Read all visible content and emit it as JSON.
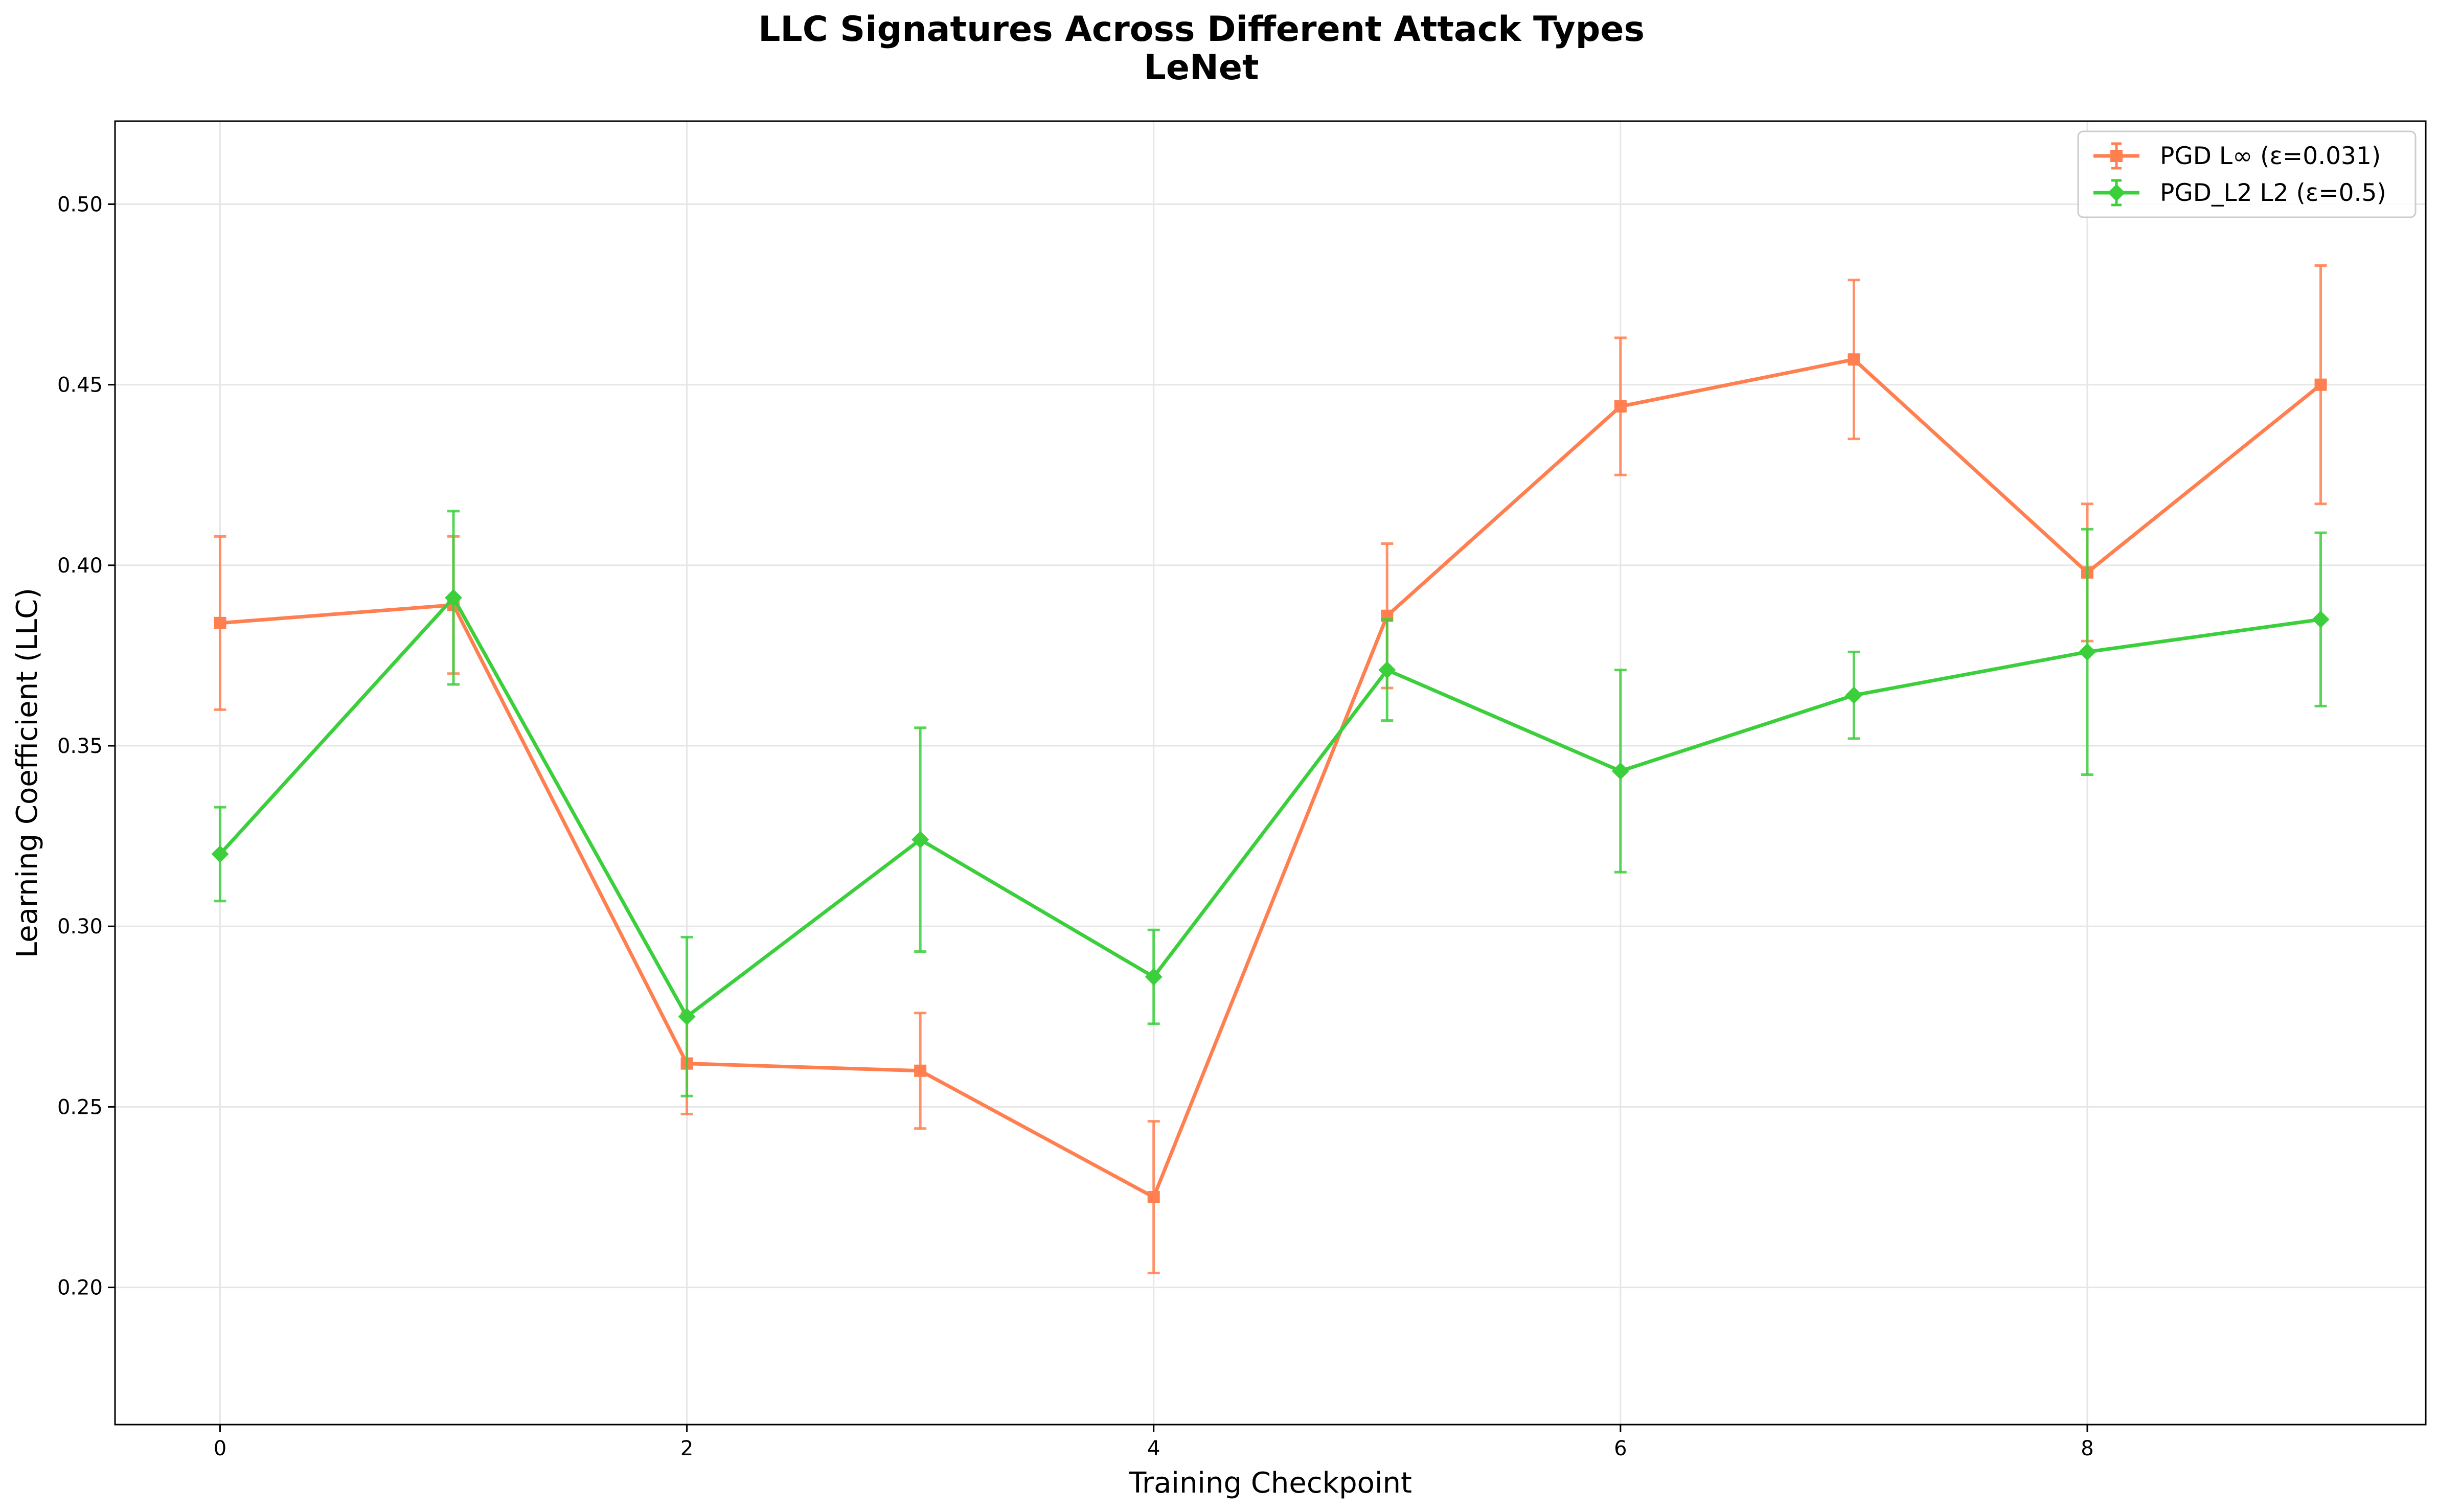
{
  "chart_data": {
    "type": "line",
    "title": "LLC Signatures Across Different Attack Types",
    "subtitle": "LeNet",
    "xlabel": "Training Checkpoint",
    "ylabel": "Learning Coefficient (LLC)",
    "xlim": [
      -0.45,
      9.45
    ],
    "ylim": [
      0.162,
      0.523
    ],
    "xticks": [
      0,
      2,
      4,
      6,
      8
    ],
    "yticks": [
      0.2,
      0.25,
      0.3,
      0.35,
      0.4,
      0.45,
      0.5
    ],
    "xtick_labels": [
      "0",
      "2",
      "4",
      "6",
      "8"
    ],
    "ytick_labels": [
      "0.20",
      "0.25",
      "0.30",
      "0.35",
      "0.40",
      "0.45",
      "0.50"
    ],
    "grid": true,
    "legend_position": "top-right",
    "series": [
      {
        "name": "PGD L∞ (ε=0.031)",
        "color": "#ff7f50",
        "marker": "square",
        "x": [
          0,
          1,
          2,
          3,
          4,
          5,
          6,
          7,
          8,
          9
        ],
        "y": [
          0.384,
          0.389,
          0.262,
          0.26,
          0.225,
          0.386,
          0.444,
          0.457,
          0.398,
          0.45
        ],
        "err": [
          0.024,
          0.019,
          0.014,
          0.016,
          0.021,
          0.02,
          0.019,
          0.022,
          0.019,
          0.033
        ]
      },
      {
        "name": "PGD_L2 L2 (ε=0.5)",
        "color": "#3ccf3c",
        "marker": "diamond",
        "x": [
          0,
          1,
          2,
          3,
          4,
          5,
          6,
          7,
          8,
          9
        ],
        "y": [
          0.32,
          0.391,
          0.275,
          0.324,
          0.286,
          0.371,
          0.343,
          0.364,
          0.376,
          0.385
        ],
        "err": [
          0.013,
          0.024,
          0.022,
          0.031,
          0.013,
          0.014,
          0.028,
          0.012,
          0.034,
          0.024
        ]
      }
    ]
  }
}
